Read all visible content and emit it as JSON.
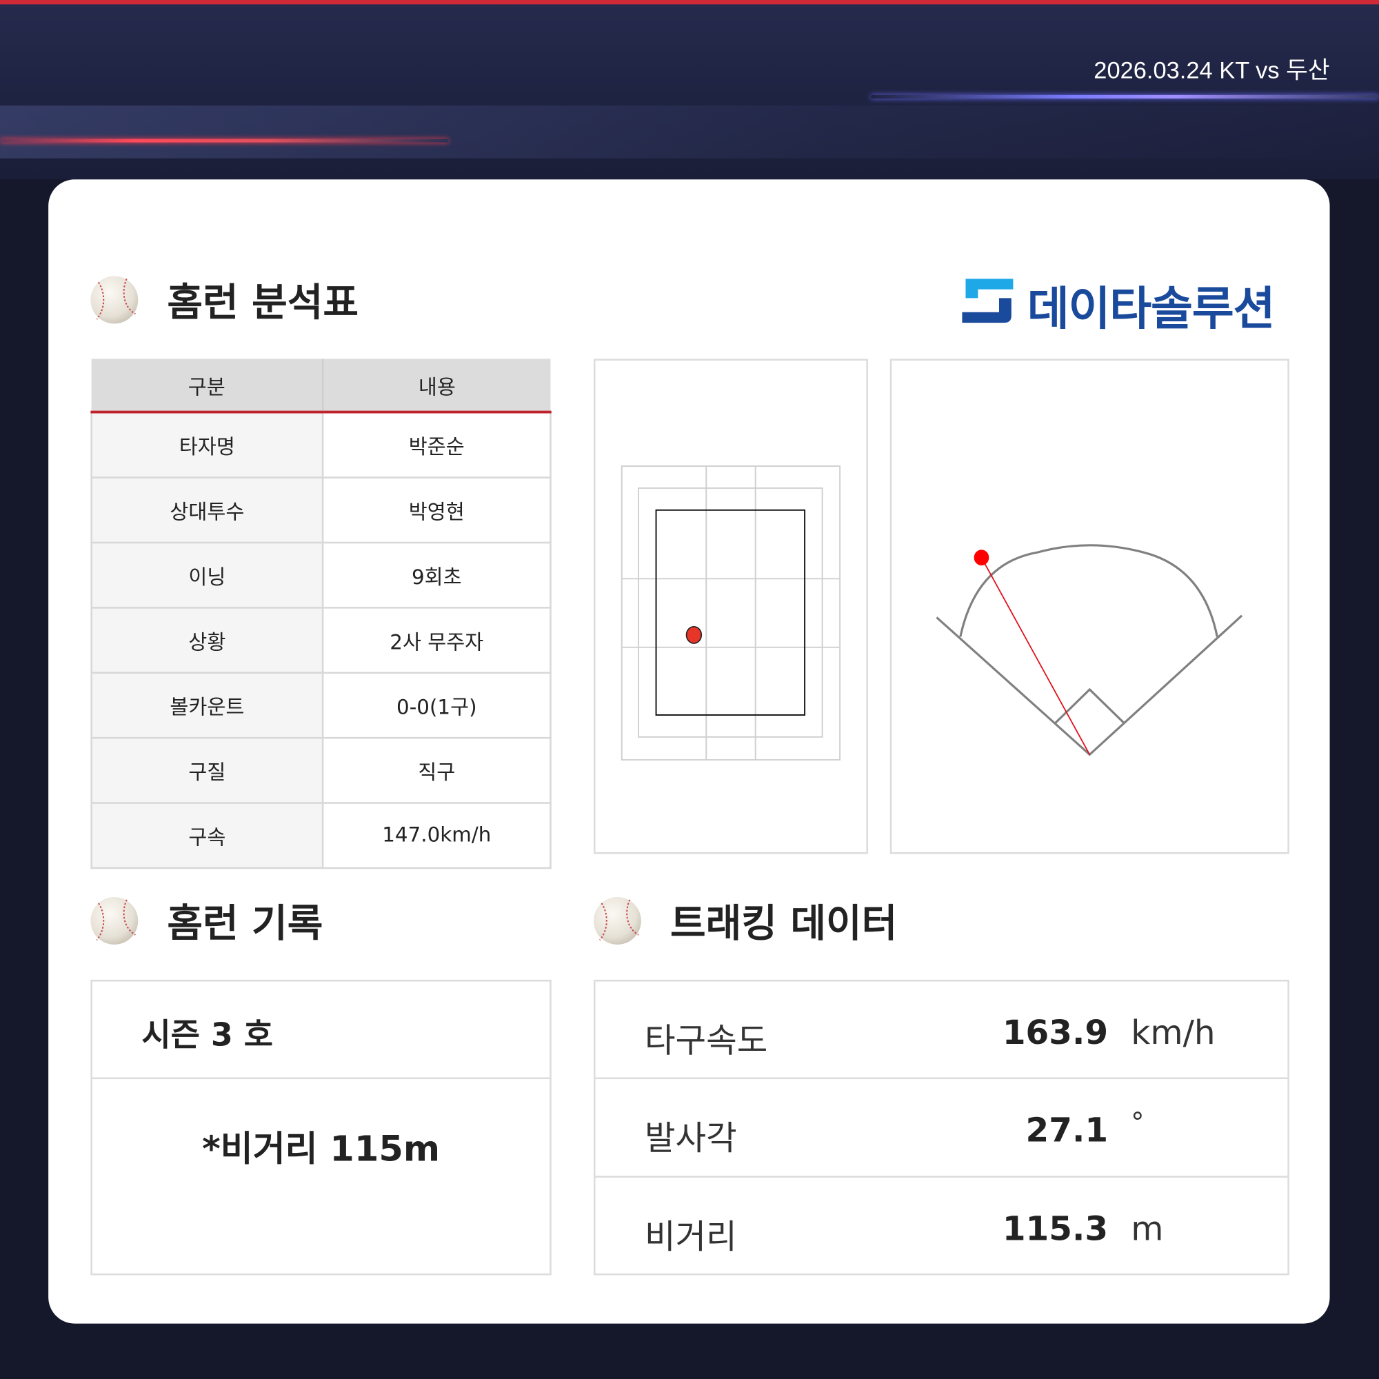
{
  "header": {
    "date_match": "2026.03.24 KT vs 두산"
  },
  "colors": {
    "accent_red": "#c0202a",
    "navy": "#1c1f3a",
    "logo_blue": "#1a4a9c",
    "logo_cyan": "#1ea8e8"
  },
  "logo": {
    "text": "데이타솔루션"
  },
  "analysis": {
    "title": "홈런 분석표",
    "icon": "baseball-icon",
    "columns": [
      "구분",
      "내용"
    ],
    "rows": [
      {
        "key": "타자명",
        "value": "박준순"
      },
      {
        "key": "상대투수",
        "value": "박영현"
      },
      {
        "key": "이닝",
        "value": "9회초"
      },
      {
        "key": "상황",
        "value": "2사 무주자"
      },
      {
        "key": "볼카운트",
        "value": "0-0(1구)"
      },
      {
        "key": "구질",
        "value": "직구"
      },
      {
        "key": "구속",
        "value": "147.0km/h"
      }
    ]
  },
  "record": {
    "title": "홈런 기록",
    "season": "시즌 3 호",
    "distance_note": "*비거리 115m"
  },
  "tracking": {
    "title": "트래킹 데이터",
    "rows": [
      {
        "label": "타구속도",
        "value": "163.9",
        "unit": "km/h"
      },
      {
        "label": "발사각",
        "value": "27.1",
        "unit": "°"
      },
      {
        "label": "비거리",
        "value": "115.3",
        "unit": "m"
      }
    ]
  }
}
